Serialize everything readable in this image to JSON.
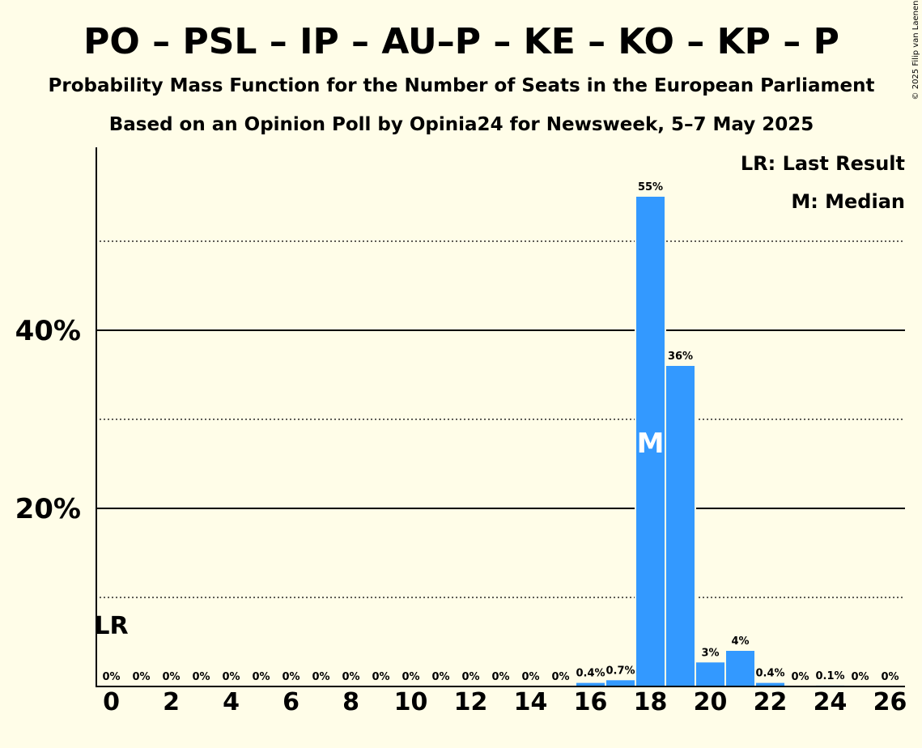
{
  "chart_data": {
    "type": "bar",
    "title": "PO – PSL – IP – AU–P – KE – KO – KP – P",
    "subtitle": "Probability Mass Function for the Number of Seats in the European Parliament",
    "subtitle2": "Based on an Opinion Poll by Opinia24 for Newsweek, 5–7 May 2025",
    "copyright": "© 2025 Filip van Laenen",
    "legend": {
      "lr": "LR: Last Result",
      "median": "M: Median",
      "placement": "top-right"
    },
    "x": [
      0,
      1,
      2,
      3,
      4,
      5,
      6,
      7,
      8,
      9,
      10,
      11,
      12,
      13,
      14,
      15,
      16,
      17,
      18,
      19,
      20,
      21,
      22,
      23,
      24,
      25,
      26
    ],
    "values": [
      0,
      0,
      0,
      0,
      0,
      0,
      0,
      0,
      0,
      0,
      0,
      0,
      0,
      0,
      0,
      0,
      0.4,
      0.7,
      55,
      36,
      2.7,
      4,
      0.4,
      0,
      0.1,
      0,
      0
    ],
    "value_labels": [
      "0%",
      "0%",
      "0%",
      "0%",
      "0%",
      "0%",
      "0%",
      "0%",
      "0%",
      "0%",
      "0%",
      "0%",
      "0%",
      "0%",
      "0%",
      "0%",
      "0.4%",
      "0.7%",
      "55%",
      "36%",
      "3%",
      "4%",
      "0.4%",
      "0%",
      "0.1%",
      "0%",
      "0%"
    ],
    "x_tick_labels": [
      "0",
      "2",
      "4",
      "6",
      "8",
      "10",
      "12",
      "14",
      "16",
      "18",
      "20",
      "22",
      "24",
      "26"
    ],
    "x_tick_values": [
      0,
      2,
      4,
      6,
      8,
      10,
      12,
      14,
      16,
      18,
      20,
      22,
      24,
      26
    ],
    "y_tick_labels": [
      "20%",
      "40%"
    ],
    "y_tick_values": [
      20,
      40
    ],
    "y_dotted_gridlines": [
      10,
      30,
      50
    ],
    "ylim": [
      0,
      60
    ],
    "last_result_seat": 0,
    "last_result_label": "LR",
    "median_seat": 18,
    "median_label": "M",
    "colors": {
      "background": "#fffde8",
      "bar": "#3399ff",
      "text": "#000000",
      "median_label": "#ffffff"
    }
  }
}
